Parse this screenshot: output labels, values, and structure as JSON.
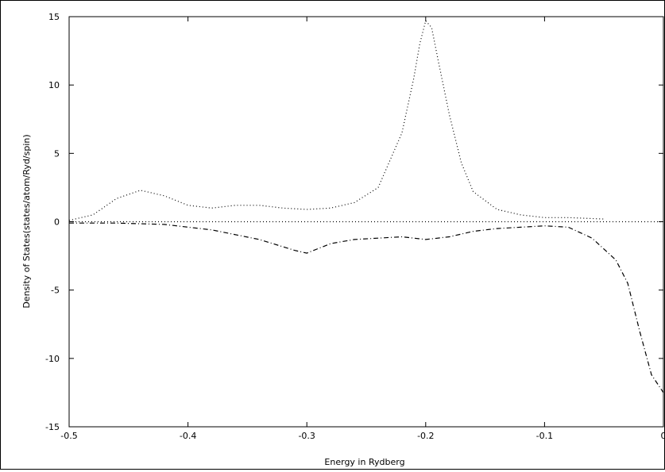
{
  "chart_data": {
    "type": "line",
    "title": "",
    "xlabel": "Energy in Rydberg",
    "ylabel": "Density of States(states/atom/Ryd/spin)",
    "xlim": [
      -0.5,
      0
    ],
    "ylim": [
      -15,
      15
    ],
    "xticks": [
      -0.5,
      -0.4,
      -0.3,
      -0.2,
      -0.1,
      0
    ],
    "yticks": [
      -15,
      -10,
      -5,
      0,
      5,
      10,
      15
    ],
    "xtick_labels": [
      "-0.5",
      "-0.4",
      "-0.3",
      "-0.2",
      "-0.1",
      "0"
    ],
    "ytick_labels": [
      "-15",
      "-10",
      "-5",
      "0",
      "5",
      "10",
      "15"
    ],
    "grid": false,
    "series": [
      {
        "dash": "dotted",
        "x": [
          -0.5,
          -0.48,
          -0.46,
          -0.44,
          -0.42,
          -0.4,
          -0.38,
          -0.36,
          -0.34,
          -0.32,
          -0.3,
          -0.28,
          -0.26,
          -0.24,
          -0.22,
          -0.21,
          -0.205,
          -0.2,
          -0.195,
          -0.19,
          -0.18,
          -0.17,
          -0.16,
          -0.14,
          -0.12,
          -0.1,
          -0.08,
          -0.05
        ],
        "values": [
          0.1,
          0.5,
          1.7,
          2.3,
          1.9,
          1.2,
          1.0,
          1.2,
          1.2,
          1.0,
          0.9,
          1.0,
          1.4,
          2.5,
          6.5,
          10.5,
          13.0,
          14.7,
          14.2,
          12.0,
          7.8,
          4.3,
          2.2,
          0.9,
          0.5,
          0.3,
          0.3,
          0.2
        ]
      },
      {
        "dash": "dotted",
        "x": [
          -0.5,
          -0.4,
          -0.3,
          -0.2,
          -0.1,
          0
        ],
        "values": [
          0,
          0,
          0,
          0,
          0,
          0
        ]
      },
      {
        "dash": "dashdot",
        "x": [
          -0.5,
          -0.46,
          -0.42,
          -0.38,
          -0.34,
          -0.31,
          -0.3,
          -0.28,
          -0.26,
          -0.24,
          -0.22,
          -0.2,
          -0.18,
          -0.16,
          -0.14,
          -0.12,
          -0.1,
          -0.08,
          -0.06,
          -0.04,
          -0.03,
          -0.02,
          -0.01,
          0
        ],
        "values": [
          -0.1,
          -0.1,
          -0.2,
          -0.6,
          -1.3,
          -2.1,
          -2.3,
          -1.6,
          -1.3,
          -1.2,
          -1.1,
          -1.3,
          -1.1,
          -0.7,
          -0.5,
          -0.4,
          -0.3,
          -0.4,
          -1.2,
          -2.8,
          -4.5,
          -8.0,
          -11.2,
          -12.5
        ]
      }
    ]
  }
}
